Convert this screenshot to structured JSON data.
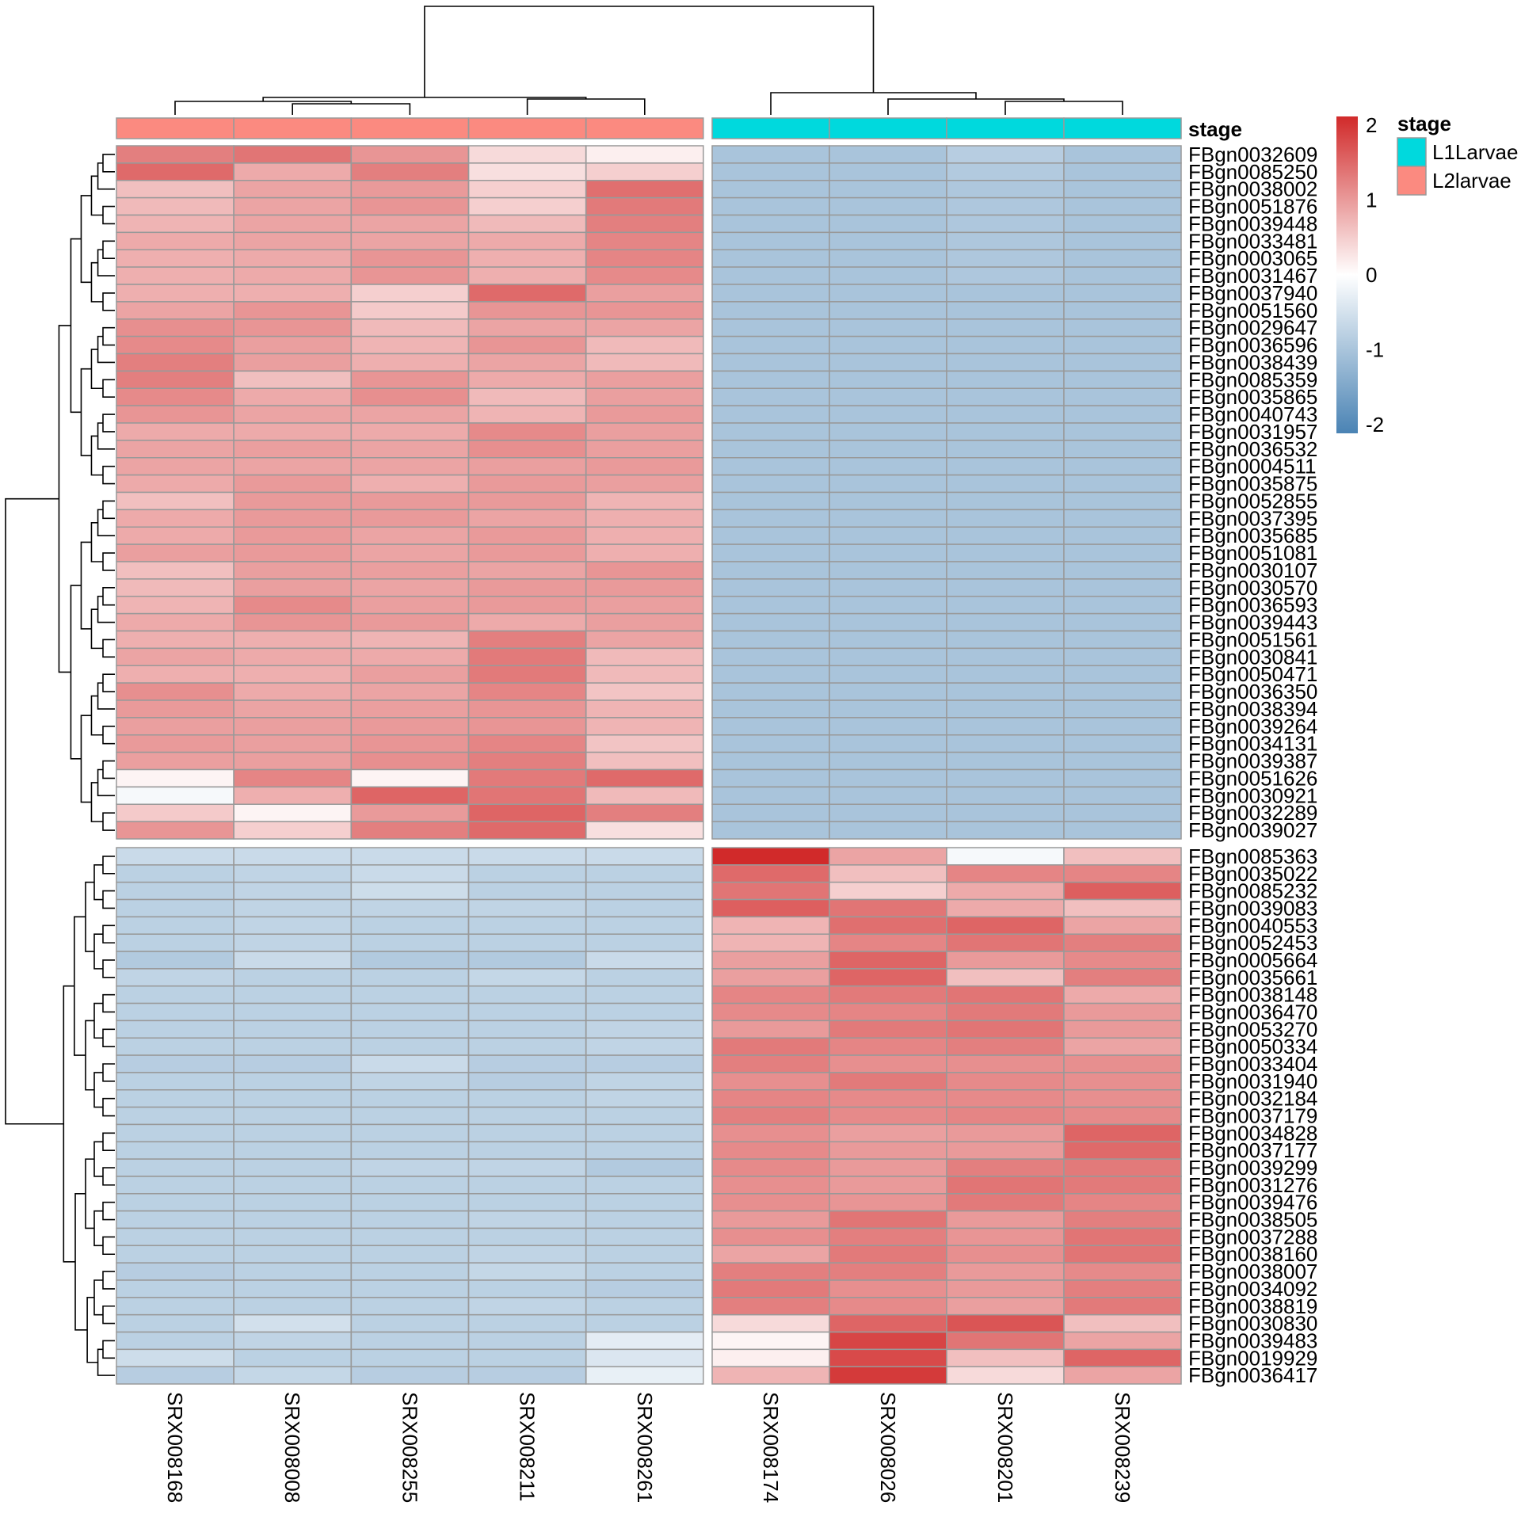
{
  "chart_data": {
    "type": "heatmap",
    "title": "",
    "columns": [
      "SRX008168",
      "SRX008008",
      "SRX008255",
      "SRX008211",
      "SRX008261",
      "SRX008174",
      "SRX008026",
      "SRX008201",
      "SRX008239"
    ],
    "column_stage": [
      "L2larvae",
      "L2larvae",
      "L2larvae",
      "L2larvae",
      "L2larvae",
      "L1Larvae",
      "L1Larvae",
      "L1Larvae",
      "L1Larvae"
    ],
    "annotation_title": "stage",
    "annotation_legend": [
      {
        "label": "L1Larvae",
        "color": "#00D9DD"
      },
      {
        "label": "L2larvae",
        "color": "#FB8A80"
      }
    ],
    "colorbar": {
      "min": -2,
      "max": 2,
      "ticks": [
        "2",
        "1",
        "0",
        "-1",
        "-2"
      ],
      "low_color": "#4A83B4",
      "mid_color": "#FFFFFF",
      "high_color": "#D12A2A"
    },
    "row_clusters": [
      {
        "genes": [
          "FBgn0032609",
          "FBgn0085250",
          "FBgn0038002",
          "FBgn0051876",
          "FBgn0039448",
          "FBgn0033481",
          "FBgn0003065",
          "FBgn0031467",
          "FBgn0037940",
          "FBgn0051560",
          "FBgn0029647",
          "FBgn0036596",
          "FBgn0038439",
          "FBgn0085359",
          "FBgn0035865",
          "FBgn0040743",
          "FBgn0031957",
          "FBgn0036532",
          "FBgn0004511",
          "FBgn0035875",
          "FBgn0052855",
          "FBgn0037395",
          "FBgn0035685",
          "FBgn0051081",
          "FBgn0030107",
          "FBgn0030570",
          "FBgn0036593",
          "FBgn0039443",
          "FBgn0051561",
          "FBgn0030841",
          "FBgn0050471",
          "FBgn0036350",
          "FBgn0038394",
          "FBgn0039264",
          "FBgn0034131",
          "FBgn0039387",
          "FBgn0051626",
          "FBgn0030921",
          "FBgn0032289",
          "FBgn0039027"
        ],
        "values": [
          [
            1.2,
            1.3,
            1.0,
            0.35,
            0.15,
            -0.95,
            -0.95,
            -0.8,
            -0.95
          ],
          [
            1.4,
            0.8,
            1.2,
            0.3,
            0.45,
            -0.95,
            -0.95,
            -0.85,
            -0.95
          ],
          [
            0.6,
            0.85,
            0.95,
            0.45,
            1.35,
            -0.95,
            -0.95,
            -0.9,
            -0.95
          ],
          [
            0.65,
            0.85,
            1.0,
            0.45,
            1.25,
            -0.95,
            -0.95,
            -0.9,
            -0.95
          ],
          [
            0.7,
            0.85,
            0.85,
            0.65,
            1.2,
            -0.95,
            -0.95,
            -0.9,
            -0.95
          ],
          [
            0.8,
            0.85,
            0.85,
            0.8,
            1.15,
            -0.95,
            -0.95,
            -0.9,
            -0.95
          ],
          [
            0.75,
            0.8,
            1.0,
            0.75,
            1.15,
            -0.95,
            -0.95,
            -0.9,
            -0.95
          ],
          [
            0.75,
            0.8,
            1.0,
            0.75,
            1.1,
            -0.95,
            -0.95,
            -0.9,
            -0.95
          ],
          [
            0.75,
            0.75,
            0.45,
            1.4,
            0.9,
            -0.95,
            -0.95,
            -0.95,
            -0.95
          ],
          [
            0.85,
            1.0,
            0.5,
            1.0,
            1.0,
            -0.95,
            -0.95,
            -0.95,
            -0.95
          ],
          [
            1.05,
            1.0,
            0.65,
            0.85,
            0.85,
            -0.95,
            -0.95,
            -0.95,
            -0.95
          ],
          [
            1.1,
            0.9,
            0.7,
            1.0,
            0.65,
            -0.95,
            -0.95,
            -0.95,
            -0.95
          ],
          [
            1.2,
            0.9,
            0.75,
            0.85,
            0.65,
            -0.95,
            -0.95,
            -0.95,
            -0.95
          ],
          [
            1.2,
            0.6,
            1.0,
            0.8,
            0.9,
            -0.95,
            -0.95,
            -0.95,
            -0.95
          ],
          [
            1.1,
            0.8,
            1.05,
            0.65,
            0.9,
            -0.95,
            -0.95,
            -0.95,
            -0.95
          ],
          [
            1.0,
            0.85,
            0.85,
            0.7,
            0.95,
            -0.95,
            -0.95,
            -0.95,
            -0.95
          ],
          [
            0.8,
            0.8,
            0.8,
            1.1,
            0.9,
            -0.95,
            -0.95,
            -0.95,
            -0.95
          ],
          [
            0.85,
            0.9,
            0.85,
            1.05,
            0.9,
            -0.95,
            -0.95,
            -0.95,
            -0.95
          ],
          [
            0.85,
            0.85,
            0.85,
            0.9,
            0.95,
            -0.95,
            -0.95,
            -0.95,
            -0.95
          ],
          [
            0.8,
            0.95,
            0.75,
            0.95,
            0.9,
            -0.95,
            -0.95,
            -0.95,
            -0.95
          ],
          [
            0.6,
            0.95,
            0.95,
            0.95,
            0.7,
            -0.95,
            -0.95,
            -0.95,
            -0.95
          ],
          [
            0.8,
            0.95,
            0.95,
            0.85,
            0.75,
            -0.95,
            -0.95,
            -0.95,
            -0.95
          ],
          [
            0.8,
            0.95,
            0.85,
            0.95,
            0.75,
            -0.95,
            -0.95,
            -0.95,
            -0.95
          ],
          [
            0.9,
            0.95,
            0.85,
            0.95,
            0.75,
            -0.95,
            -0.95,
            -0.95,
            -0.95
          ],
          [
            0.6,
            0.9,
            0.9,
            0.85,
            1.0,
            -0.95,
            -0.95,
            -0.95,
            -0.95
          ],
          [
            0.65,
            0.9,
            0.85,
            0.95,
            0.95,
            -0.95,
            -0.95,
            -0.95,
            -0.95
          ],
          [
            0.7,
            1.1,
            0.9,
            0.95,
            0.9,
            -0.95,
            -0.95,
            -0.95,
            -0.95
          ],
          [
            0.8,
            1.0,
            0.95,
            0.8,
            0.9,
            -0.95,
            -0.95,
            -0.95,
            -0.95
          ],
          [
            0.75,
            0.75,
            0.7,
            1.2,
            0.85,
            -0.95,
            -0.95,
            -0.95,
            -0.95
          ],
          [
            0.85,
            0.8,
            0.8,
            1.25,
            0.65,
            -0.95,
            -0.95,
            -0.95,
            -0.95
          ],
          [
            0.75,
            0.75,
            0.9,
            1.25,
            0.65,
            -0.95,
            -0.95,
            -0.95,
            -0.95
          ],
          [
            1.05,
            0.8,
            0.85,
            1.15,
            0.55,
            -0.95,
            -0.95,
            -0.95,
            -0.95
          ],
          [
            0.95,
            0.85,
            0.9,
            1.0,
            0.7,
            -0.95,
            -0.95,
            -0.95,
            -0.95
          ],
          [
            0.9,
            0.9,
            0.95,
            1.0,
            0.7,
            -0.95,
            -0.95,
            -0.95,
            -0.95
          ],
          [
            0.95,
            0.9,
            1.0,
            1.15,
            0.55,
            -0.95,
            -0.95,
            -0.95,
            -0.95
          ],
          [
            0.9,
            0.9,
            1.05,
            1.2,
            0.6,
            -0.95,
            -0.95,
            -0.95,
            -0.95
          ],
          [
            0.1,
            1.15,
            0.1,
            1.25,
            1.4,
            -0.95,
            -0.95,
            -0.95,
            -0.95
          ],
          [
            -0.1,
            0.75,
            1.45,
            1.3,
            0.65,
            -0.95,
            -0.95,
            -0.95,
            -0.95
          ],
          [
            0.5,
            0.1,
            0.95,
            1.45,
            1.2,
            -0.95,
            -0.95,
            -0.95,
            -0.95
          ],
          [
            1.0,
            0.45,
            1.2,
            1.4,
            0.3,
            -0.95,
            -0.95,
            -0.95,
            -0.95
          ]
        ]
      },
      {
        "genes": [
          "FBgn0085363",
          "FBgn0035022",
          "FBgn0085232",
          "FBgn0039083",
          "FBgn0040553",
          "FBgn0052453",
          "FBgn0005664",
          "FBgn0035661",
          "FBgn0038148",
          "FBgn0036470",
          "FBgn0053270",
          "FBgn0050334",
          "FBgn0033404",
          "FBgn0031940",
          "FBgn0032184",
          "FBgn0037179",
          "FBgn0034828",
          "FBgn0037177",
          "FBgn0039299",
          "FBgn0031276",
          "FBgn0039476",
          "FBgn0038505",
          "FBgn0037288",
          "FBgn0038160",
          "FBgn0038007",
          "FBgn0034092",
          "FBgn0038819",
          "FBgn0030830",
          "FBgn0039483",
          "FBgn0019929",
          "FBgn0036417"
        ],
        "values": [
          [
            -0.6,
            -0.6,
            -0.6,
            -0.6,
            -0.6,
            2.0,
            0.85,
            -0.1,
            0.6
          ],
          [
            -0.75,
            -0.7,
            -0.6,
            -0.75,
            -0.75,
            1.4,
            0.6,
            1.15,
            1.15
          ],
          [
            -0.75,
            -0.7,
            -0.55,
            -0.75,
            -0.75,
            1.3,
            0.45,
            0.8,
            1.5
          ],
          [
            -0.75,
            -0.7,
            -0.7,
            -0.7,
            -0.75,
            1.5,
            1.3,
            0.8,
            0.6
          ],
          [
            -0.75,
            -0.7,
            -0.75,
            -0.75,
            -0.75,
            0.7,
            1.35,
            1.45,
            0.85
          ],
          [
            -0.75,
            -0.7,
            -0.75,
            -0.75,
            -0.75,
            0.7,
            1.15,
            1.3,
            1.2
          ],
          [
            -0.85,
            -0.6,
            -0.85,
            -0.85,
            -0.6,
            0.9,
            1.45,
            0.95,
            1.1
          ],
          [
            -0.7,
            -0.75,
            -0.75,
            -0.65,
            -0.75,
            0.9,
            1.45,
            0.6,
            1.2
          ],
          [
            -0.75,
            -0.75,
            -0.75,
            -0.75,
            -0.75,
            1.15,
            1.25,
            1.3,
            0.8
          ],
          [
            -0.75,
            -0.75,
            -0.75,
            -0.75,
            -0.75,
            1.1,
            1.15,
            1.25,
            0.95
          ],
          [
            -0.75,
            -0.75,
            -0.75,
            -0.75,
            -0.7,
            0.95,
            1.25,
            1.3,
            0.95
          ],
          [
            -0.75,
            -0.75,
            -0.75,
            -0.75,
            -0.7,
            1.25,
            1.15,
            1.2,
            0.85
          ],
          [
            -0.8,
            -0.8,
            -0.6,
            -0.8,
            -0.8,
            1.2,
            1.05,
            1.05,
            1.05
          ],
          [
            -0.75,
            -0.75,
            -0.7,
            -0.8,
            -0.7,
            1.05,
            1.25,
            1.1,
            1.05
          ],
          [
            -0.75,
            -0.75,
            -0.75,
            -0.75,
            -0.7,
            1.15,
            1.1,
            1.1,
            1.05
          ],
          [
            -0.75,
            -0.75,
            -0.75,
            -0.75,
            -0.75,
            1.2,
            1.1,
            1.15,
            1.1
          ],
          [
            -0.75,
            -0.75,
            -0.75,
            -0.75,
            -0.75,
            1.05,
            0.9,
            0.95,
            1.45
          ],
          [
            -0.75,
            -0.75,
            -0.75,
            -0.75,
            -0.75,
            1.1,
            0.95,
            0.95,
            1.4
          ],
          [
            -0.75,
            -0.75,
            -0.7,
            -0.7,
            -0.85,
            1.1,
            0.95,
            1.2,
            1.25
          ],
          [
            -0.75,
            -0.75,
            -0.75,
            -0.75,
            -0.75,
            1.05,
            0.95,
            1.3,
            1.25
          ],
          [
            -0.75,
            -0.75,
            -0.75,
            -0.75,
            -0.75,
            1.05,
            1.0,
            1.25,
            1.15
          ],
          [
            -0.75,
            -0.75,
            -0.75,
            -0.7,
            -0.75,
            0.95,
            1.3,
            0.95,
            1.2
          ],
          [
            -0.75,
            -0.75,
            -0.75,
            -0.75,
            -0.75,
            1.05,
            1.2,
            1.0,
            1.3
          ],
          [
            -0.75,
            -0.75,
            -0.75,
            -0.7,
            -0.75,
            0.85,
            1.25,
            1.05,
            1.3
          ],
          [
            -0.8,
            -0.75,
            -0.75,
            -0.65,
            -0.75,
            1.2,
            1.2,
            0.95,
            1.1
          ],
          [
            -0.75,
            -0.75,
            -0.75,
            -0.75,
            -0.8,
            1.25,
            1.05,
            0.95,
            1.2
          ],
          [
            -0.75,
            -0.75,
            -0.75,
            -0.7,
            -0.75,
            1.2,
            1.1,
            0.9,
            1.25
          ],
          [
            -0.75,
            -0.5,
            -0.75,
            -0.75,
            -0.75,
            0.35,
            1.45,
            1.6,
            0.6
          ],
          [
            -0.75,
            -0.7,
            -0.75,
            -0.75,
            -0.3,
            0.1,
            1.75,
            1.3,
            0.85
          ],
          [
            -0.55,
            -0.75,
            -0.75,
            -0.75,
            -0.4,
            0.15,
            1.7,
            0.6,
            1.45
          ],
          [
            -0.8,
            -0.65,
            -0.8,
            -0.8,
            -0.25,
            0.7,
            1.85,
            0.35,
            0.85
          ]
        ]
      }
    ],
    "column_dendrogram": "two clusters: L2larvae samples (left) and L1Larvae samples (right)",
    "row_dendrogram": "two clusters: 40 genes up in L2larvae, 31 genes up in L1Larvae"
  }
}
